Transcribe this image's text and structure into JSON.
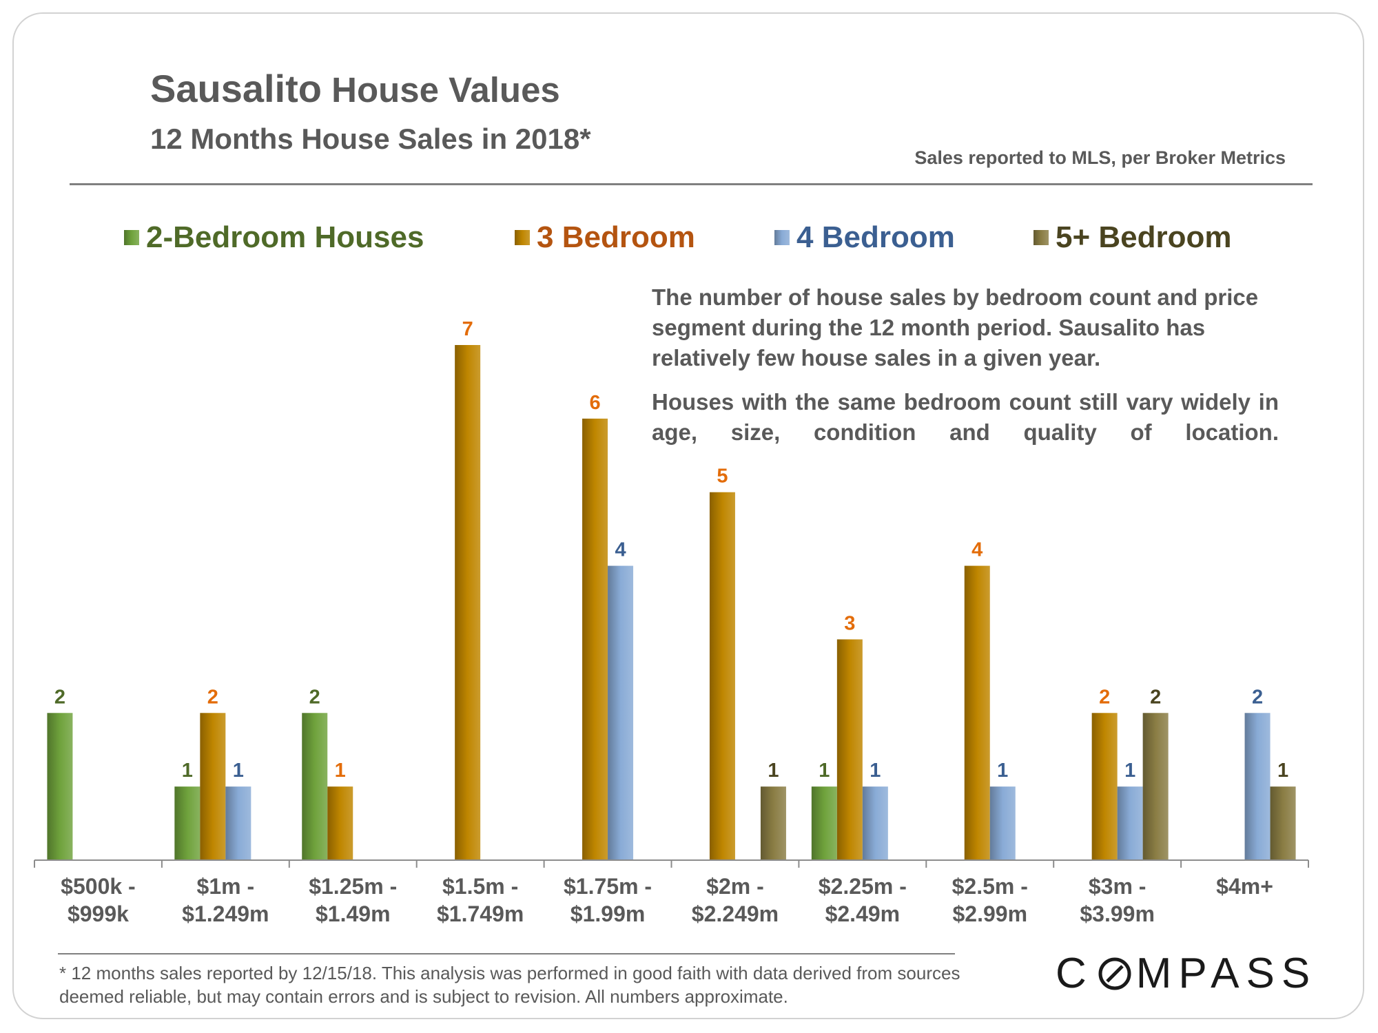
{
  "header": {
    "title_place": "Sausalito",
    "title_rest": "House Values",
    "subtitle": "12 Months House Sales in 2018*",
    "source": "Sales reported to MLS, per Broker Metrics"
  },
  "colors": {
    "two_bed": "#6fa23c",
    "three_bed": "#bf8600",
    "four_bed": "#89abd6",
    "five_bed": "#8a7d44",
    "two_bed_text": "#4f6a28",
    "three_bed_text": "#e36c09",
    "three_bed_legend": "#b45410",
    "four_bed_text": "#3b5f91",
    "five_bed_text": "#4a4420",
    "axis": "#8c8c8c",
    "tick_text": "#595959"
  },
  "description": {
    "para1": "The number of house sales by bedroom count and price segment during the 12 month period. Sausalito has relatively few house sales in a given year.",
    "para2": "Houses with the same bedroom count still vary widely in age, size, condition and quality of location."
  },
  "chart_data": {
    "type": "bar",
    "title": "12 Months House Sales in 2018*",
    "xlabel": "",
    "ylabel": "",
    "ylim": [
      0,
      7
    ],
    "categories": [
      [
        "$500k -",
        "$999k"
      ],
      [
        "$1m -",
        "$1.249m"
      ],
      [
        "$1.25m -",
        "$1.49m"
      ],
      [
        "$1.5m -",
        "$1.749m"
      ],
      [
        "$1.75m -",
        "$1.99m"
      ],
      [
        "$2m -",
        "$2.249m"
      ],
      [
        "$2.25m -",
        "$2.49m"
      ],
      [
        "$2.5m -",
        "$2.99m"
      ],
      [
        "$3m -",
        "$3.99m"
      ],
      [
        "$4m+"
      ]
    ],
    "series": [
      {
        "key": "two_bed",
        "name": "2-Bedroom Houses",
        "values": [
          2,
          1,
          2,
          null,
          null,
          null,
          1,
          null,
          null,
          null
        ]
      },
      {
        "key": "three_bed",
        "name": "3 Bedroom",
        "values": [
          null,
          2,
          1,
          7,
          6,
          5,
          3,
          4,
          2,
          null
        ]
      },
      {
        "key": "four_bed",
        "name": "4 Bedroom",
        "values": [
          null,
          1,
          null,
          null,
          4,
          null,
          1,
          1,
          1,
          2
        ]
      },
      {
        "key": "five_bed",
        "name": "5+ Bedroom",
        "values": [
          null,
          null,
          null,
          null,
          null,
          1,
          null,
          null,
          2,
          1
        ]
      }
    ],
    "legend": "top"
  },
  "footer": {
    "footnote": "* 12 months sales reported by 12/15/18. This analysis was performed in good faith with data derived from sources deemed reliable, but may contain errors and is subject to revision. All numbers approximate.",
    "logo_before": "C",
    "logo_after": "MPASS"
  }
}
